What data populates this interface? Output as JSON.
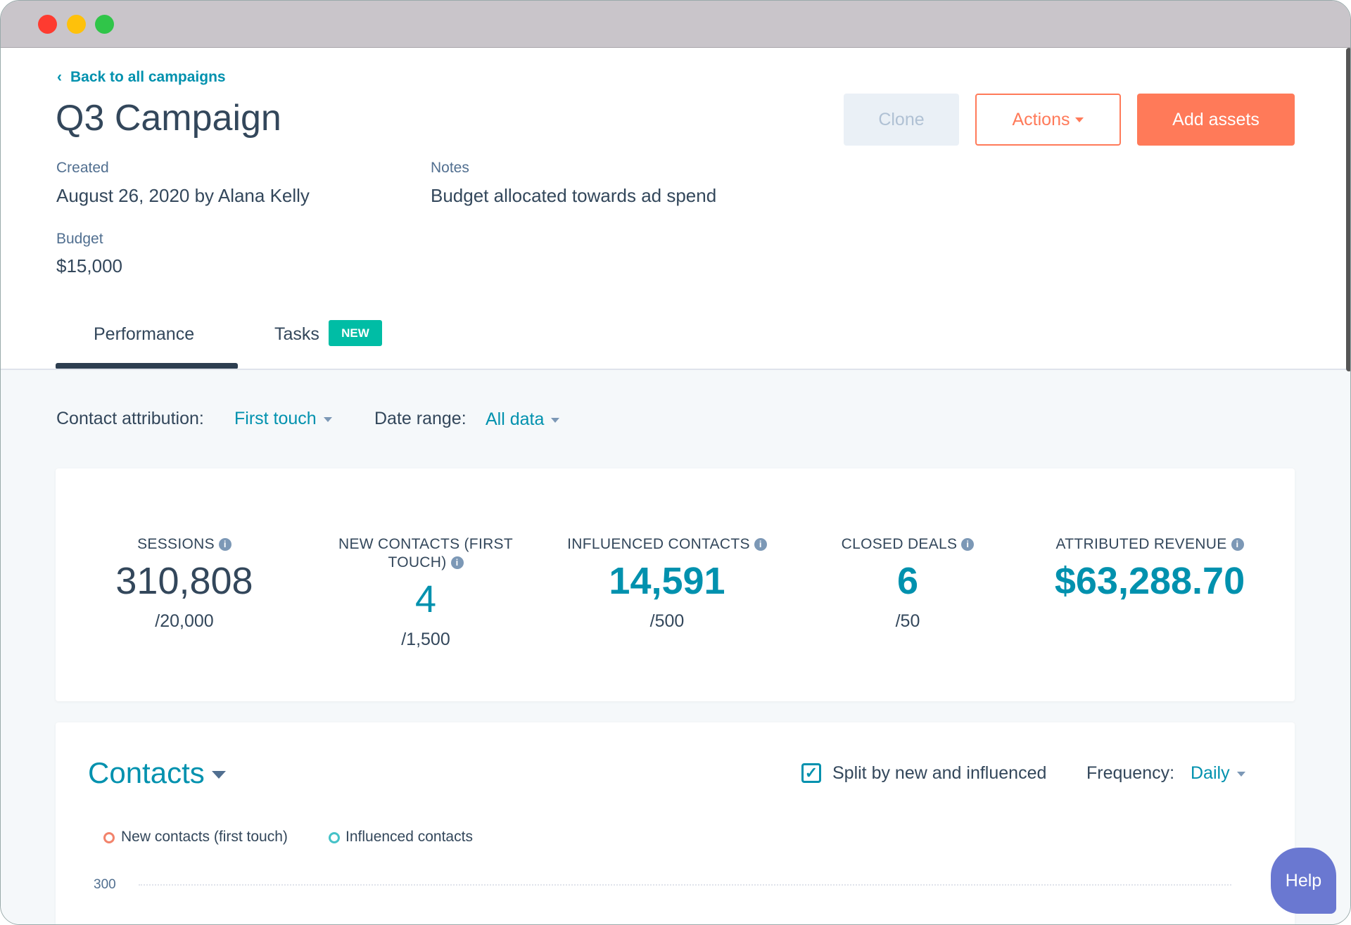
{
  "window": {
    "controls": [
      "close",
      "minimize",
      "maximize"
    ]
  },
  "header": {
    "back_link": "Back to all campaigns",
    "title": "Q3 Campaign",
    "buttons": {
      "clone": "Clone",
      "actions": "Actions",
      "add_assets": "Add assets"
    }
  },
  "details": {
    "created_label": "Created",
    "created_value": "August 26, 2020 by Alana Kelly",
    "notes_label": "Notes",
    "notes_value": "Budget allocated towards ad spend",
    "budget_label": "Budget",
    "budget_value": "$15,000"
  },
  "tabs": [
    {
      "label": "Performance",
      "active": true
    },
    {
      "label": "Tasks",
      "badge": "NEW"
    }
  ],
  "filters": {
    "attribution_label": "Contact attribution:",
    "attribution_value": "First touch",
    "date_label": "Date range:",
    "date_value": "All data"
  },
  "stats": [
    {
      "label": "SESSIONS",
      "value": "310,808",
      "goal": "/20,000"
    },
    {
      "label": "NEW CONTACTS (FIRST TOUCH)",
      "value": "4",
      "goal": "/1,500"
    },
    {
      "label": "INFLUENCED CONTACTS",
      "value": "14,591",
      "goal": "/500"
    },
    {
      "label": "CLOSED DEALS",
      "value": "6",
      "goal": "/50"
    },
    {
      "label": "ATTRIBUTED REVENUE",
      "value": "$63,288.70"
    }
  ],
  "contacts": {
    "title": "Contacts",
    "split_label": "Split by new and influenced",
    "split_checked": true,
    "frequency_label": "Frequency:",
    "frequency_value": "Daily",
    "legend": [
      "New contacts (first touch)",
      "Influenced contacts"
    ],
    "y_tick": "300"
  },
  "help": "Help",
  "colors": {
    "accent": "#0091ae",
    "orange": "#ff7a59",
    "badge": "#00bda5",
    "help": "#6a78d1"
  }
}
